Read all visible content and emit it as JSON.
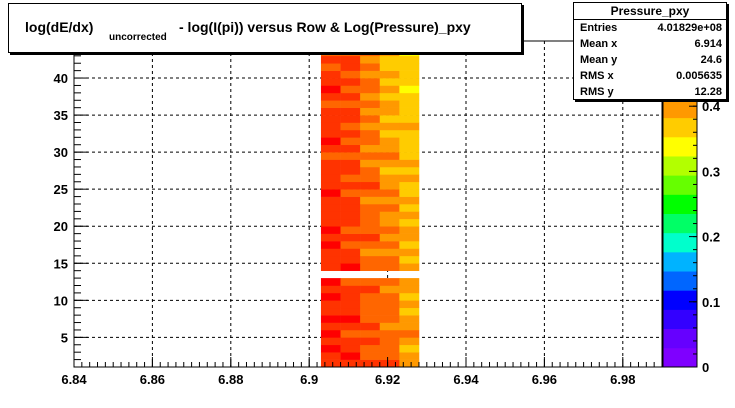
{
  "title": {
    "main": "log(dE/dx)",
    "subscript": "uncorrected",
    "rest": "- log(I(pi)) versus Row & Log(Pressure)_pxy"
  },
  "stats": {
    "name": "Pressure_pxy",
    "rows": [
      {
        "key": "Entries",
        "value": "4.01829e+08"
      },
      {
        "key": "Mean x",
        "value": "6.914"
      },
      {
        "key": "Mean y",
        "value": "24.6"
      },
      {
        "key": "RMS x",
        "value": "0.005635"
      },
      {
        "key": "RMS y",
        "value": "12.28"
      }
    ]
  },
  "chart_data": {
    "type": "heatmap",
    "xlim": [
      6.84,
      6.99
    ],
    "ylim": [
      1,
      45
    ],
    "zlim": [
      0,
      0.5
    ],
    "x_ticks": [
      "6.84",
      "6.86",
      "6.88",
      "6.9",
      "6.92",
      "6.94",
      "6.96",
      "6.98"
    ],
    "y_ticks": [
      "5",
      "10",
      "15",
      "20",
      "25",
      "30",
      "35",
      "40"
    ],
    "z_ticks": [
      "0",
      "0.1",
      "0.2",
      "0.3",
      "0.4"
    ],
    "grid": true,
    "x_bins": [
      6.903,
      6.908,
      6.913,
      6.918,
      6.923,
      6.928
    ],
    "y_gap": [
      13,
      14
    ],
    "z_columns": [
      [
        0.47,
        0.45
      ],
      [
        0.46,
        0.44
      ],
      [
        0.44,
        0.41
      ],
      [
        0.43,
        0.38
      ],
      [
        0.4,
        0.36
      ]
    ],
    "palette": [
      "#7f00ff",
      "#6600ff",
      "#3300ff",
      "#0000ff",
      "#0066ff",
      "#00b3ff",
      "#00ffcc",
      "#00ff66",
      "#00ff00",
      "#66ff00",
      "#b3ff00",
      "#ffff00",
      "#ffcc00",
      "#ff9900",
      "#ff6600",
      "#ff3300",
      "#ff0000"
    ]
  }
}
